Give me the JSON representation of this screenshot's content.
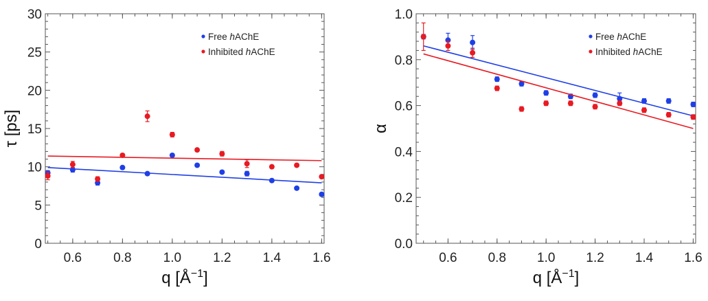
{
  "colors": {
    "free": "#1f3fe6",
    "inhibited": "#e81a22",
    "axis": "#555555"
  },
  "chart_data": [
    {
      "type": "scatter",
      "ylabel": "τ [ps]",
      "xlabel_base": "q [Å",
      "xlabel_sup": "−1",
      "xlabel_end": "]",
      "xlim": [
        0.49,
        1.61
      ],
      "ylim": [
        0,
        30
      ],
      "xticks": [
        0.6,
        0.8,
        1.0,
        1.2,
        1.4,
        1.6
      ],
      "xtick_labels": [
        "0.6",
        "0.8",
        "1.0",
        "1.2",
        "1.4",
        "1.6"
      ],
      "yticks": [
        0,
        5,
        10,
        15,
        20,
        25,
        30
      ],
      "ytick_labels": [
        "0",
        "5",
        "10",
        "15",
        "20",
        "25",
        "30"
      ],
      "legend_position": "top-right",
      "series": [
        {
          "name_pre": "Free ",
          "name_italic": "h",
          "name_post": "AChE",
          "color_key": "free",
          "x": [
            0.5,
            0.6,
            0.7,
            0.8,
            0.9,
            1.0,
            1.1,
            1.2,
            1.3,
            1.4,
            1.5,
            1.6
          ],
          "y": [
            9.2,
            9.6,
            7.9,
            9.9,
            9.1,
            11.5,
            10.2,
            9.3,
            9.1,
            8.2,
            7.2,
            6.4
          ],
          "err": [
            0.3,
            0.3,
            0.3,
            0.2,
            0.2,
            0.2,
            0.2,
            0.2,
            0.3,
            0.2,
            0.2,
            0.2
          ],
          "fit": [
            [
              0.5,
              9.9
            ],
            [
              1.6,
              7.9
            ]
          ]
        },
        {
          "name_pre": "Inhibited ",
          "name_italic": "h",
          "name_post": "AChE",
          "color_key": "inhibited",
          "x": [
            0.5,
            0.6,
            0.7,
            0.8,
            0.9,
            1.0,
            1.1,
            1.2,
            1.3,
            1.4,
            1.5,
            1.6
          ],
          "y": [
            8.8,
            10.3,
            8.4,
            11.5,
            16.6,
            14.2,
            12.2,
            11.7,
            10.4,
            10.0,
            10.2,
            8.7
          ],
          "err": [
            0.5,
            0.4,
            0.3,
            0.2,
            0.7,
            0.3,
            0.2,
            0.3,
            0.5,
            0.2,
            0.2,
            0.2
          ],
          "fit": [
            [
              0.5,
              11.4
            ],
            [
              1.6,
              10.8
            ]
          ]
        }
      ]
    },
    {
      "type": "scatter",
      "ylabel": "α",
      "xlabel_base": "q [Å",
      "xlabel_sup": "−1",
      "xlabel_end": "]",
      "xlim": [
        0.47,
        1.61
      ],
      "ylim": [
        0,
        1.0
      ],
      "xticks": [
        0.6,
        0.8,
        1.0,
        1.2,
        1.4,
        1.6
      ],
      "xtick_labels": [
        "0.6",
        "0.8",
        "1.0",
        "1.2",
        "1.4",
        "1.6"
      ],
      "yticks": [
        0,
        0.2,
        0.4,
        0.6,
        0.8,
        1.0
      ],
      "ytick_labels": [
        "0.0",
        "0.2",
        "0.4",
        "0.6",
        "0.8",
        "1.0"
      ],
      "legend_position": "top-right",
      "series": [
        {
          "name_pre": "Free ",
          "name_italic": "h",
          "name_post": "AChE",
          "color_key": "free",
          "x": [
            0.5,
            0.6,
            0.7,
            0.8,
            0.9,
            1.0,
            1.1,
            1.2,
            1.3,
            1.4,
            1.5,
            1.6
          ],
          "y": [
            0.9,
            0.885,
            0.875,
            0.715,
            0.695,
            0.655,
            0.64,
            0.645,
            0.63,
            0.62,
            0.62,
            0.605
          ],
          "err": [
            0.01,
            0.03,
            0.03,
            0.01,
            0.01,
            0.01,
            0.01,
            0.01,
            0.025,
            0.01,
            0.01,
            0.01
          ],
          "fit": [
            [
              0.5,
              0.86
            ],
            [
              1.6,
              0.555
            ]
          ]
        },
        {
          "name_pre": "Inhibited ",
          "name_italic": "h",
          "name_post": "AChE",
          "color_key": "inhibited",
          "x": [
            0.5,
            0.6,
            0.7,
            0.8,
            0.9,
            1.0,
            1.1,
            1.2,
            1.3,
            1.4,
            1.5,
            1.6
          ],
          "y": [
            0.9,
            0.86,
            0.83,
            0.675,
            0.585,
            0.61,
            0.61,
            0.595,
            0.61,
            0.58,
            0.56,
            0.55
          ],
          "err": [
            0.06,
            0.02,
            0.02,
            0.01,
            0.01,
            0.01,
            0.01,
            0.01,
            0.01,
            0.01,
            0.01,
            0.01
          ],
          "fit": [
            [
              0.5,
              0.825
            ],
            [
              1.6,
              0.5
            ]
          ]
        }
      ]
    }
  ]
}
